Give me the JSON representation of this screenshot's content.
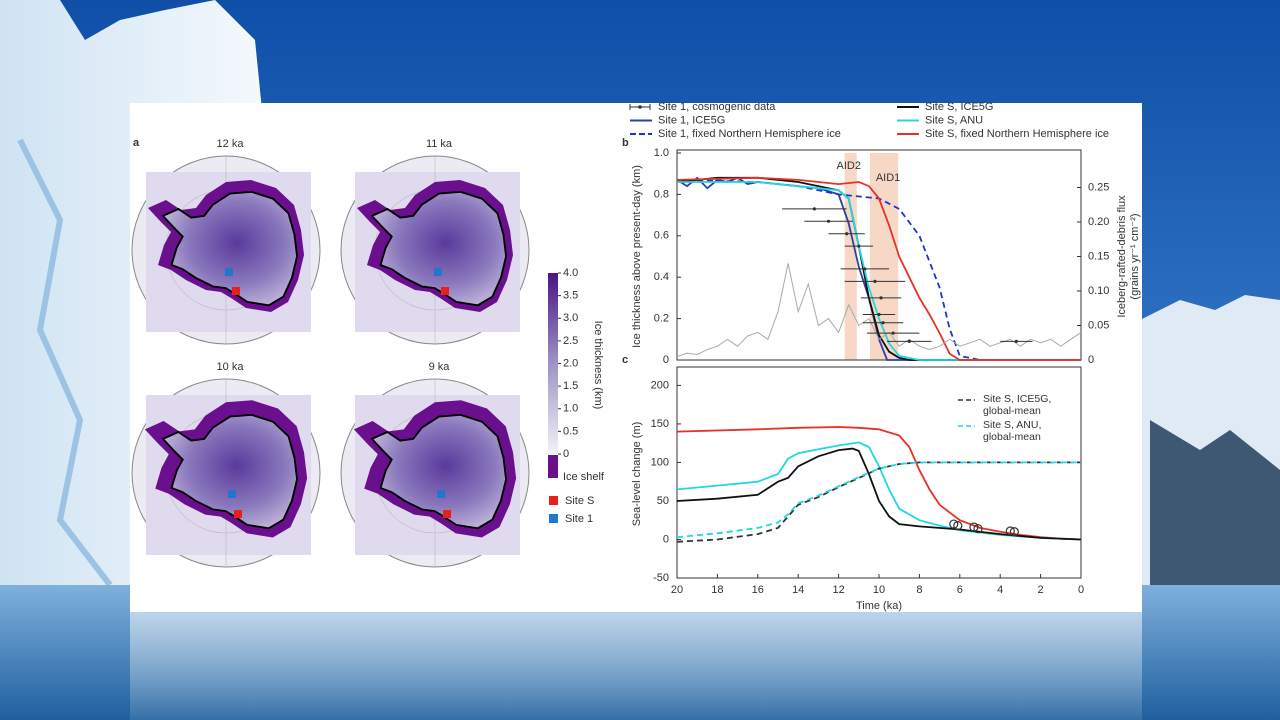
{
  "maps_panel": {
    "label": "a",
    "maps": [
      "12 ka",
      "11 ka",
      "10 ka",
      "9 ka"
    ],
    "colorbar": {
      "label": "Ice thickness (km)",
      "lim": [
        0,
        4
      ],
      "ticks": [
        0,
        {
          "value": 0.5,
          "label": "0.5"
        },
        {
          "value": 1,
          "label": "1.0"
        },
        {
          "value": 1.5,
          "label": "1.5"
        },
        {
          "value": 2,
          "label": "2.0"
        },
        {
          "value": 2.5,
          "label": "2.5"
        },
        {
          "value": 3,
          "label": "3.0"
        },
        {
          "value": 3.5,
          "label": "3.5"
        },
        {
          "value": 4,
          "label": "4.0"
        }
      ],
      "shelf_label": "Ice shelf"
    },
    "sites": [
      {
        "name": "Site S",
        "color": "#e8201c"
      },
      {
        "name": "Site 1",
        "color": "#1f78c8"
      }
    ]
  },
  "chart_data": [
    {
      "type": "line",
      "panel_label": "b",
      "ylabel": "Ice thickness above present-day (km)",
      "y2label": [
        "Iceberg-rafted-debris flux",
        "(grains yr⁻¹ cm⁻²)"
      ],
      "xlim": [
        20,
        0
      ],
      "ylim": [
        0,
        1
      ],
      "yticks": [
        0,
        0.2,
        0.4,
        0.6,
        0.8,
        {
          "value": 1,
          "label": "1.0"
        }
      ],
      "y2lim": [
        0,
        0.3
      ],
      "y2ticks": [
        0,
        0.05,
        {
          "value": 0.1,
          "label": "0.10"
        },
        0.15,
        {
          "value": 0.2,
          "label": "0.20"
        },
        0.25
      ],
      "bands": [
        {
          "label": "AID2",
          "from": 11.7,
          "to": 11.1,
          "color": "#f5cdb8"
        },
        {
          "label": "AID1",
          "from": 10.45,
          "to": 9.05,
          "color": "#f5cdb8"
        }
      ],
      "errorbar_series": {
        "name": "Site 1, cosmogenic data",
        "color": "#333333",
        "x": [
          13.2,
          12.5,
          11.6,
          11.0,
          10.7,
          10.2,
          9.9,
          10.0,
          9.8,
          9.3,
          8.5,
          3.2
        ],
        "values": [
          0.73,
          0.67,
          0.61,
          0.55,
          0.44,
          0.38,
          0.3,
          0.22,
          0.18,
          0.13,
          0.09,
          0.09
        ],
        "xerr": [
          1.6,
          1.2,
          0.9,
          0.7,
          1.2,
          1.5,
          1.0,
          0.8,
          1.0,
          1.3,
          1.1,
          0.8
        ]
      },
      "series": [
        {
          "name": "Site 1, ICE5G",
          "color": "#2b3fa8",
          "dash": false,
          "x": [
            20,
            19.5,
            19,
            18.5,
            18,
            17.5,
            17,
            16.5,
            16,
            15,
            14,
            13,
            12,
            11.5,
            11,
            10.5,
            10,
            9.6,
            0
          ],
          "values": [
            0.87,
            0.84,
            0.88,
            0.83,
            0.87,
            0.86,
            0.88,
            0.85,
            0.86,
            0.85,
            0.84,
            0.83,
            0.8,
            0.66,
            0.45,
            0.3,
            0.1,
            0,
            0
          ]
        },
        {
          "name": "Site 1, fixed Northern Hemisphere ice",
          "color": "#2233cc",
          "dash": true,
          "x": [
            20,
            16,
            14,
            12,
            10,
            9,
            8,
            7,
            6.5,
            6,
            5,
            0
          ],
          "values": [
            0.87,
            0.86,
            0.84,
            0.8,
            0.78,
            0.73,
            0.6,
            0.35,
            0.15,
            0.02,
            0,
            0
          ]
        },
        {
          "name": "Site S, ICE5G",
          "color": "#111111",
          "dash": false,
          "x": [
            20,
            18,
            16,
            14,
            12,
            11.5,
            11,
            10.5,
            10,
            9.5,
            9,
            8.5,
            0
          ],
          "values": [
            0.86,
            0.88,
            0.88,
            0.86,
            0.82,
            0.78,
            0.55,
            0.3,
            0.12,
            0.04,
            0.01,
            0,
            0
          ]
        },
        {
          "name": "Site S, ANU",
          "color": "#1fd8e0",
          "dash": false,
          "x": [
            20,
            16,
            14,
            12,
            11.5,
            11,
            10.5,
            10,
            9.5,
            9,
            8,
            0
          ],
          "values": [
            0.86,
            0.86,
            0.84,
            0.82,
            0.78,
            0.55,
            0.35,
            0.2,
            0.08,
            0.02,
            0,
            0
          ]
        },
        {
          "name": "Site S, fixed Northern Hemisphere ice",
          "color": "#e8302a",
          "dash": false,
          "x": [
            20,
            16,
            14,
            12,
            11,
            10.5,
            10,
            9.5,
            9,
            8.5,
            8,
            7.5,
            7,
            6.5,
            6,
            0
          ],
          "values": [
            0.87,
            0.88,
            0.87,
            0.85,
            0.86,
            0.84,
            0.78,
            0.65,
            0.5,
            0.4,
            0.3,
            0.22,
            0.13,
            0.03,
            0,
            0
          ]
        },
        {
          "color": "#aaaaaa",
          "dash": false,
          "axis": "y2",
          "x": [
            20,
            19.5,
            19,
            18.5,
            18,
            17.5,
            17,
            16.5,
            16,
            15.5,
            15,
            14.5,
            14,
            13.5,
            13,
            12.5,
            12,
            11.5,
            11,
            10.5,
            10,
            9.5,
            9,
            8.5,
            8,
            7.5,
            7,
            6.5,
            6,
            5.5,
            5,
            4.5,
            4,
            3.5,
            3,
            2.5,
            2,
            1.5,
            1,
            0.5,
            0
          ],
          "values": [
            0.005,
            0.01,
            0.008,
            0.015,
            0.02,
            0.03,
            0.02,
            0.035,
            0.04,
            0.03,
            0.07,
            0.14,
            0.07,
            0.11,
            0.05,
            0.06,
            0.04,
            0.08,
            0.05,
            0.06,
            0.03,
            0.04,
            0.02,
            0.03,
            0.02,
            0.015,
            0.02,
            0.03,
            0.02,
            0.025,
            0.03,
            0.02,
            0.025,
            0.03,
            0.02,
            0.03,
            0.025,
            0.03,
            0.02,
            0.03,
            0.04
          ]
        }
      ]
    },
    {
      "type": "line",
      "panel_label": "c",
      "xlabel": "Time (ka)",
      "ylabel": "Sea-level change (m)",
      "xlim": [
        20,
        0
      ],
      "xticks": [
        20,
        18,
        16,
        14,
        12,
        10,
        8,
        6,
        4,
        2,
        0
      ],
      "ylim": [
        -50,
        220
      ],
      "yticks": [
        -50,
        0,
        50,
        100,
        150,
        200
      ],
      "legend": "upper right",
      "series": [
        {
          "color": "#e8302a",
          "dash": false,
          "x": [
            20,
            16,
            14,
            12,
            11,
            10,
            9,
            8.5,
            8,
            7.5,
            7,
            6,
            5,
            4,
            3,
            2,
            1,
            0
          ],
          "values": [
            140,
            143,
            145,
            146,
            145,
            143,
            135,
            120,
            90,
            65,
            45,
            25,
            15,
            10,
            6,
            3,
            1,
            0
          ]
        },
        {
          "color": "#1fd8e0",
          "dash": false,
          "x": [
            20,
            18,
            16,
            15,
            14.5,
            14,
            13,
            12,
            11,
            10.5,
            10,
            9.5,
            9,
            8,
            7,
            6,
            4,
            2,
            0
          ],
          "values": [
            65,
            70,
            75,
            85,
            105,
            112,
            117,
            122,
            126,
            120,
            95,
            65,
            40,
            25,
            18,
            12,
            6,
            2,
            0
          ]
        },
        {
          "color": "#111111",
          "dash": false,
          "x": [
            20,
            18,
            16,
            15,
            14.5,
            14,
            13,
            12,
            11.3,
            11,
            10.5,
            10,
            9.5,
            9,
            8,
            6,
            4,
            2,
            0
          ],
          "values": [
            50,
            53,
            58,
            75,
            80,
            95,
            108,
            116,
            118,
            115,
            85,
            50,
            30,
            20,
            17,
            13,
            7,
            2,
            0
          ]
        },
        {
          "name": "Site S, ICE5G, global-mean",
          "color": "#333333",
          "dash": true,
          "x": [
            20,
            18,
            16,
            15,
            14.5,
            14,
            13,
            12,
            11,
            10,
            9,
            8,
            6,
            0
          ],
          "values": [
            -3,
            0,
            7,
            15,
            30,
            45,
            55,
            68,
            80,
            92,
            98,
            100,
            100,
            100
          ]
        },
        {
          "name": "Site S, ANU, global-mean",
          "color": "#1fd8e0",
          "dash": true,
          "x": [
            20,
            18,
            16,
            15,
            14.5,
            14,
            13,
            12,
            11,
            10,
            9,
            8,
            6,
            0
          ],
          "values": [
            3,
            8,
            15,
            22,
            33,
            47,
            57,
            69,
            81,
            92,
            98,
            100,
            100,
            100
          ]
        }
      ],
      "points": {
        "color": "#333333",
        "x": [
          6.3,
          6.1,
          5.3,
          5.1,
          3.5,
          3.3
        ],
        "values": [
          20,
          18,
          16,
          14,
          11,
          10
        ]
      }
    }
  ]
}
